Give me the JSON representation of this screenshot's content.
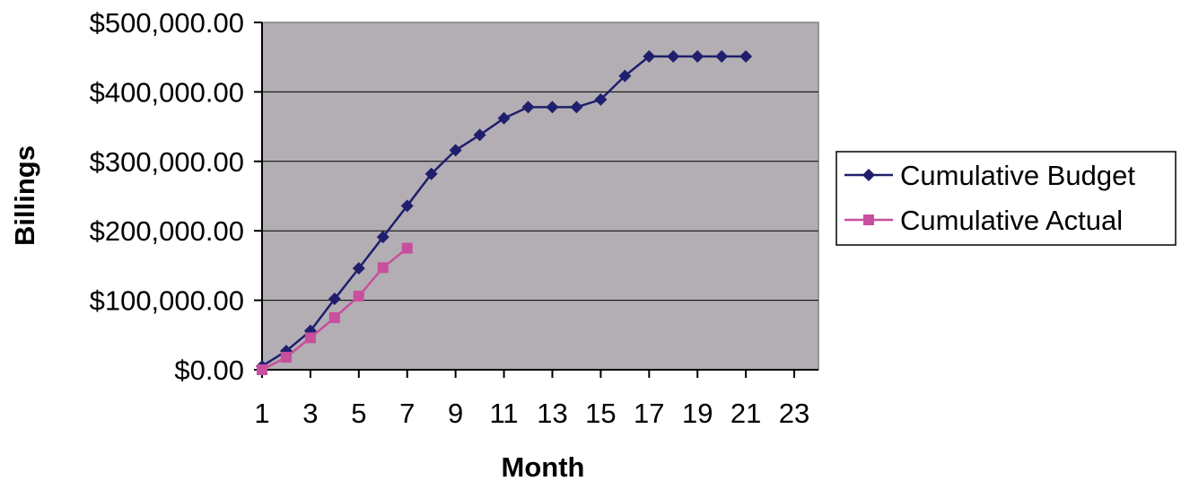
{
  "chart_data": {
    "type": "line",
    "title": "",
    "xlabel": "Month",
    "ylabel": "Billings",
    "x_ticks": [
      "1",
      "3",
      "5",
      "7",
      "9",
      "11",
      "13",
      "15",
      "17",
      "19",
      "21",
      "23"
    ],
    "y_ticks": [
      "$0.00",
      "$100,000.00",
      "$200,000.00",
      "$300,000.00",
      "$400,000.00",
      "$500,000.00"
    ],
    "xlim": [
      1,
      24
    ],
    "ylim": [
      0,
      500000
    ],
    "grid": "horizontal",
    "legend_position": "right",
    "plot_background": "#b3aeb3",
    "series": [
      {
        "name": "Cumulative Budget",
        "color": "#1f1f6e",
        "marker": "diamond",
        "x": [
          1,
          2,
          3,
          4,
          5,
          6,
          7,
          8,
          9,
          10,
          11,
          12,
          13,
          14,
          15,
          16,
          17,
          18,
          19,
          20,
          21
        ],
        "values": [
          5000,
          27000,
          56000,
          102000,
          146000,
          191000,
          236000,
          282000,
          316000,
          338000,
          362000,
          378000,
          378000,
          378000,
          389000,
          423000,
          451000,
          451000,
          451000,
          451000,
          451000
        ]
      },
      {
        "name": "Cumulative Actual",
        "color": "#c84f9e",
        "marker": "square",
        "x": [
          1,
          2,
          3,
          4,
          5,
          6,
          7
        ],
        "values": [
          0,
          18000,
          46000,
          75000,
          106000,
          147000,
          175000
        ]
      }
    ]
  }
}
